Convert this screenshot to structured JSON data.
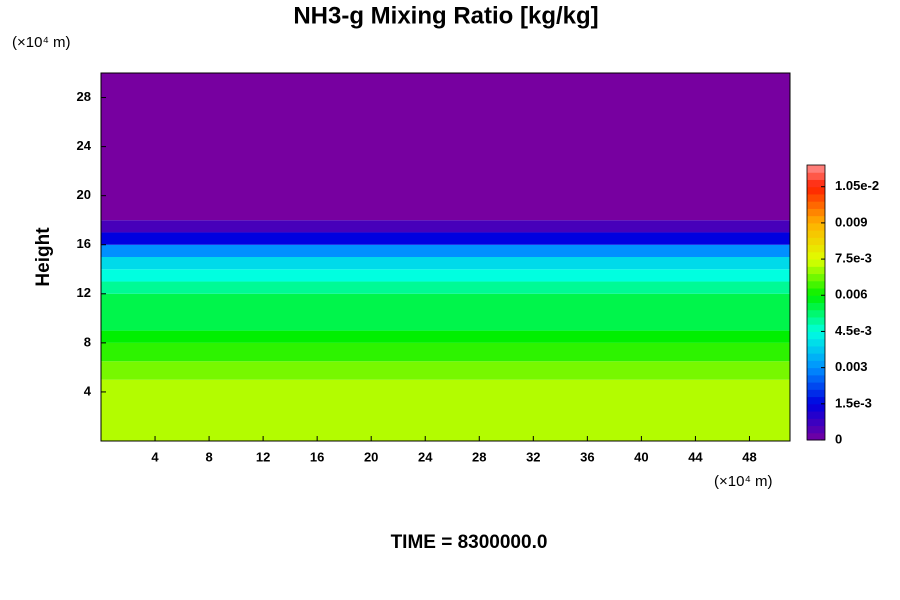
{
  "chart_data": {
    "type": "contour",
    "title": "NH3-g Mixing Ratio [kg/kg]",
    "subtitle": "TIME = 8300000.0",
    "y_label": "Height",
    "x_unit": "(×10⁴ m)",
    "y_unit": "(×10⁴ m)",
    "xlim": [
      0,
      51
    ],
    "xticks": [
      4,
      8,
      12,
      16,
      20,
      24,
      28,
      32,
      36,
      40,
      44,
      48
    ],
    "ylim": [
      0,
      30
    ],
    "yticks": [
      4,
      8,
      12,
      16,
      20,
      24,
      28
    ],
    "bands": [
      0,
      5,
      6.5,
      8,
      9,
      12,
      13,
      14,
      15,
      16,
      17,
      18,
      30
    ],
    "values": [
      0.0072,
      0.0068,
      0.0063,
      0.006,
      0.0055,
      0.005,
      0.0045,
      0.004,
      0.003,
      0.0015,
      0.0006,
      0
    ],
    "colorbar": {
      "clim": [
        0,
        0.0114
      ],
      "ticks": [
        0,
        {
          "value": 0.0015,
          "label": "1.5e-3"
        },
        0.003,
        {
          "value": 0.0045,
          "label": "4.5e-3"
        },
        0.006,
        {
          "value": 0.0075,
          "label": "7.5e-3"
        },
        0.009,
        {
          "value": 0.0105,
          "label": "1.05e-2"
        }
      ],
      "stops": [
        {
          "value": 0,
          "color": "#7700a0"
        },
        {
          "value": 0.0015,
          "color": "#0000e0"
        },
        {
          "value": 0.003,
          "color": "#0090ff"
        },
        {
          "value": 0.0045,
          "color": "#00ffe0"
        },
        {
          "value": 0.006,
          "color": "#00f000"
        },
        {
          "value": 0.0075,
          "color": "#e0ff00"
        },
        {
          "value": 0.009,
          "color": "#ffb000"
        },
        {
          "value": 0.0105,
          "color": "#ff2000"
        },
        {
          "value": 0.0114,
          "color": "#ff9090"
        }
      ]
    }
  }
}
